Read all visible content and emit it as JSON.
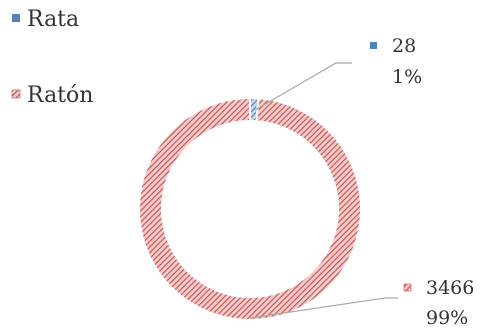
{
  "chart_data": {
    "type": "pie",
    "variant": "doughnut",
    "categories": [
      "Rata",
      "Ratón"
    ],
    "values": [
      28,
      3466
    ],
    "percent_labels": [
      "1%",
      "99%"
    ],
    "value_labels": [
      "28",
      "3466"
    ],
    "colors": [
      "#4f81bd",
      "#c0504d"
    ],
    "fill_pattern": "diagonal-hatch",
    "legend_position": "top-left"
  }
}
